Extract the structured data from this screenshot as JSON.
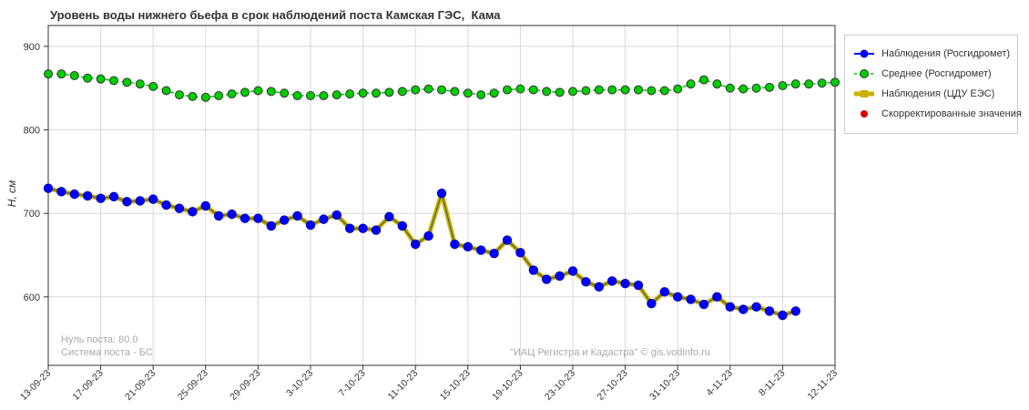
{
  "chart_data": {
    "type": "line",
    "title": "Уровень воды нижнего бьефа в срок наблюдений поста Камская ГЭС,  Кама",
    "ylabel": "H, см",
    "xlabel": "",
    "ylim": [
      518,
      925
    ],
    "yticks": [
      600,
      700,
      800,
      900
    ],
    "xlim": [
      "2023-09-13",
      "2023-11-12"
    ],
    "x_tick_labels": [
      "13-09-23",
      "17-09-23",
      "21-09-23",
      "25-09-23",
      "29-09-23",
      "3-10-23",
      "7-10-23",
      "11-10-23",
      "15-10-23",
      "19-10-23",
      "23-10-23",
      "27-10-23",
      "31-10-23",
      "4-11-23",
      "8-11-23",
      "12-11-23"
    ],
    "grid": true,
    "legend_position": "right",
    "series": [
      {
        "name": "Наблюдения (Росгидромет)",
        "color": "#0000ff",
        "x": [
          "2023-09-13",
          "2023-09-14",
          "2023-09-15",
          "2023-09-16",
          "2023-09-17",
          "2023-09-18",
          "2023-09-19",
          "2023-09-20",
          "2023-09-21",
          "2023-09-22",
          "2023-09-23",
          "2023-09-24",
          "2023-09-25",
          "2023-09-26",
          "2023-09-27",
          "2023-09-28",
          "2023-09-29",
          "2023-09-30",
          "2023-10-01",
          "2023-10-02",
          "2023-10-03",
          "2023-10-04",
          "2023-10-05",
          "2023-10-06",
          "2023-10-07",
          "2023-10-08",
          "2023-10-09",
          "2023-10-10",
          "2023-10-11",
          "2023-10-12",
          "2023-10-13",
          "2023-10-14",
          "2023-10-15",
          "2023-10-16",
          "2023-10-17",
          "2023-10-18",
          "2023-10-19",
          "2023-10-20",
          "2023-10-21",
          "2023-10-22",
          "2023-10-23",
          "2023-10-24",
          "2023-10-25",
          "2023-10-26",
          "2023-10-27",
          "2023-10-28",
          "2023-10-29",
          "2023-10-30",
          "2023-10-31",
          "2023-11-01",
          "2023-11-02",
          "2023-11-03",
          "2023-11-04",
          "2023-11-05",
          "2023-11-06",
          "2023-11-07",
          "2023-11-08",
          "2023-11-09"
        ],
        "values": [
          730,
          726,
          723,
          721,
          718,
          720,
          714,
          715,
          717,
          710,
          706,
          702,
          709,
          697,
          699,
          694,
          694,
          685,
          692,
          697,
          686,
          693,
          698,
          682,
          682,
          680,
          696,
          685,
          663,
          673,
          724,
          663,
          660,
          656,
          652,
          668,
          653,
          632,
          621,
          625,
          631,
          618,
          612,
          619,
          616,
          614,
          592,
          606,
          600,
          597,
          591,
          600,
          588,
          585,
          588,
          583,
          578,
          583
        ]
      },
      {
        "name": "Среднее (Росгидромет)",
        "color": "#00cc00",
        "x": [
          "2023-09-13",
          "2023-09-14",
          "2023-09-15",
          "2023-09-16",
          "2023-09-17",
          "2023-09-18",
          "2023-09-19",
          "2023-09-20",
          "2023-09-21",
          "2023-09-22",
          "2023-09-23",
          "2023-09-24",
          "2023-09-25",
          "2023-09-26",
          "2023-09-27",
          "2023-09-28",
          "2023-09-29",
          "2023-09-30",
          "2023-10-01",
          "2023-10-02",
          "2023-10-03",
          "2023-10-04",
          "2023-10-05",
          "2023-10-06",
          "2023-10-07",
          "2023-10-08",
          "2023-10-09",
          "2023-10-10",
          "2023-10-11",
          "2023-10-12",
          "2023-10-13",
          "2023-10-14",
          "2023-10-15",
          "2023-10-16",
          "2023-10-17",
          "2023-10-18",
          "2023-10-19",
          "2023-10-20",
          "2023-10-21",
          "2023-10-22",
          "2023-10-23",
          "2023-10-24",
          "2023-10-25",
          "2023-10-26",
          "2023-10-27",
          "2023-10-28",
          "2023-10-29",
          "2023-10-30",
          "2023-10-31",
          "2023-11-01",
          "2023-11-02",
          "2023-11-03",
          "2023-11-04",
          "2023-11-05",
          "2023-11-06",
          "2023-11-07",
          "2023-11-08",
          "2023-11-09",
          "2023-11-10",
          "2023-11-11",
          "2023-11-12"
        ],
        "values": [
          867,
          867,
          865,
          862,
          861,
          859,
          857,
          855,
          852,
          847,
          842,
          840,
          839,
          841,
          843,
          845,
          847,
          846,
          844,
          841,
          841,
          841,
          842,
          843,
          844,
          844,
          845,
          846,
          848,
          849,
          848,
          846,
          844,
          842,
          844,
          848,
          849,
          848,
          846,
          845,
          846,
          847,
          848,
          848,
          848,
          848,
          847,
          847,
          849,
          855,
          860,
          855,
          850,
          849,
          850,
          851,
          853,
          855,
          855,
          856,
          857
        ]
      },
      {
        "name": "Наблюдения (ЦДУ ЕЭС)",
        "color": "#c8b400",
        "same_as": "Наблюдения (Росгидромет)"
      },
      {
        "name": "Скорректированные значения",
        "color": "#dd0000",
        "values": []
      }
    ],
    "annotations": [
      "Нуль поста: 80.0",
      "Система поста - БС",
      "\"ИАЦ Регистра и Кадастра\" © gis.vodinfo.ru"
    ]
  },
  "legend": [
    {
      "label": "Наблюдения (Росгидромет)",
      "symbol": "line-marker",
      "line_color": "#0000ff",
      "marker_color": "#0000ff"
    },
    {
      "label": "Среднее (Росгидромет)",
      "symbol": "dashed-marker",
      "line_color": "#00cc00",
      "marker_color": "#00cc00"
    },
    {
      "label": "Наблюдения (ЦДУ ЕЭС)",
      "symbol": "thick-line",
      "line_color": "#c8b400",
      "marker_color": "#c8b400"
    },
    {
      "label": "Скорректированные значения",
      "symbol": "marker",
      "line_color": "#dd0000",
      "marker_color": "#dd0000"
    }
  ]
}
